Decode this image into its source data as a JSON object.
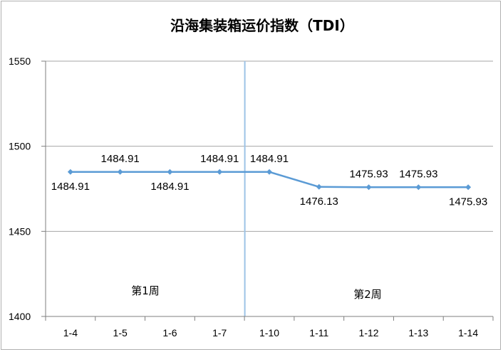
{
  "chart_data": {
    "type": "line",
    "title": "沿海集装箱运价指数（TDI）",
    "xlabel": "",
    "ylabel": "",
    "categories": [
      "1-4",
      "1-5",
      "1-6",
      "1-7",
      "1-10",
      "1-11",
      "1-12",
      "1-13",
      "1-14"
    ],
    "series": [
      {
        "values": [
          1484.91,
          1484.91,
          1484.91,
          1484.91,
          1484.91,
          1476.13,
          1475.93,
          1475.93,
          1475.93
        ],
        "data_labels": [
          "1484.91",
          "1484.91",
          "1484.91",
          "1484.91",
          "1484.91",
          "1476.13",
          "1475.93",
          "1475.93",
          "1475.93"
        ],
        "color": "#5b9bd5"
      }
    ],
    "ylim": [
      1400,
      1550
    ],
    "yticks": [
      1400,
      1450,
      1500,
      1550
    ],
    "grid": true,
    "annotations": [
      {
        "text": "第1周"
      },
      {
        "text": "第2周"
      }
    ],
    "divider_between": [
      "1-7",
      "1-10"
    ],
    "colors": {
      "line": "#5b9bd5",
      "divider": "#9dc3e6",
      "grid": "#a6a6a6",
      "axis": "#7f7f7f"
    }
  }
}
